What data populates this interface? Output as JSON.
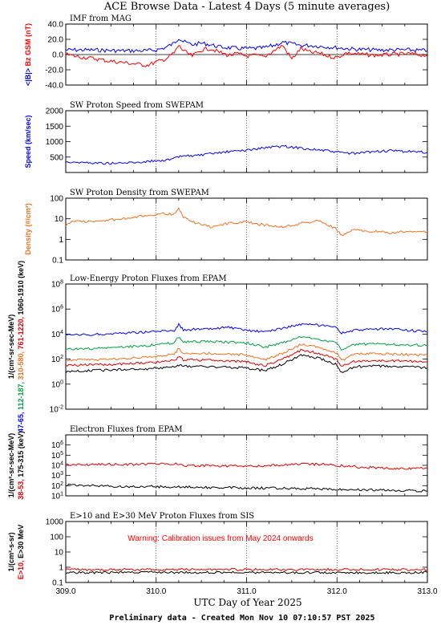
{
  "page": {
    "title": "ACE Browse Data - Latest 4 Days (5 minute averages)",
    "xlabel": "UTC Day of Year 2025",
    "footer": "Preliminary data - Created Mon Nov 10 07:10:57 PST 2025",
    "x_ticks": [
      "309.0",
      "310.0",
      "311.0",
      "312.0",
      "313.0"
    ]
  },
  "chart_data": [
    {
      "type": "line",
      "title": "IMF from MAG",
      "xlim": [
        309.0,
        313.0
      ],
      "ylim": [
        -40,
        40
      ],
      "y_ticks": [
        "40.0",
        "20.0",
        "0.0",
        "-20.0",
        "-40.0"
      ],
      "ylabel_parts": [
        {
          "text": "<|B|>",
          "color": "#0000ff"
        },
        {
          "text": "Bz GSM (nT)",
          "color": "#ff0000"
        }
      ],
      "zero_line": true,
      "series": [
        {
          "color": "#0000ff",
          "x": [
            309.0,
            309.3,
            309.6,
            309.9,
            310.0,
            310.1,
            310.2,
            310.25,
            310.3,
            310.4,
            310.5,
            310.6,
            310.7,
            310.8,
            310.9,
            311.0,
            311.1,
            311.2,
            311.3,
            311.4,
            311.5,
            311.6,
            311.7,
            311.8,
            311.9,
            312.0,
            312.2,
            312.4,
            312.6,
            312.8,
            313.0
          ],
          "values": [
            6,
            6,
            5,
            5,
            6,
            9,
            15,
            22,
            17,
            13,
            15,
            13,
            10,
            9,
            8,
            8,
            8,
            9,
            12,
            16,
            14,
            12,
            12,
            11,
            10,
            9,
            7,
            6,
            6,
            6,
            5
          ]
        },
        {
          "color": "#ff0000",
          "x": [
            309.0,
            309.15,
            309.3,
            309.45,
            309.6,
            309.75,
            309.9,
            310.0,
            310.1,
            310.2,
            310.25,
            310.3,
            310.4,
            310.5,
            310.6,
            310.7,
            310.8,
            310.9,
            311.0,
            311.1,
            311.2,
            311.3,
            311.4,
            311.5,
            311.6,
            311.7,
            311.8,
            311.9,
            312.0,
            312.1,
            312.2,
            312.4,
            312.6,
            312.8,
            313.0
          ],
          "values": [
            0,
            -3,
            -5,
            -8,
            -10,
            -12,
            -14,
            -10,
            -6,
            2,
            12,
            5,
            -2,
            6,
            8,
            3,
            -1,
            1,
            -2,
            -1,
            -3,
            5,
            12,
            -6,
            8,
            3,
            2,
            -2,
            -4,
            2,
            1,
            -1,
            0,
            1,
            -1
          ]
        }
      ]
    },
    {
      "type": "line",
      "title": "SW Proton Speed from SWEPAM",
      "xlim": [
        309.0,
        313.0
      ],
      "ylim": [
        0,
        2000
      ],
      "y_ticks": [
        "2000",
        "1500",
        "1000",
        "500"
      ],
      "ylabel_parts": [
        {
          "text": "Speed (km/sec)",
          "color": "#0000ff"
        }
      ],
      "series": [
        {
          "color": "#0000ff",
          "x": [
            309.0,
            309.2,
            309.4,
            309.6,
            309.8,
            310.0,
            310.15,
            310.3,
            310.5,
            310.7,
            310.9,
            311.0,
            311.2,
            311.4,
            311.6,
            311.8,
            312.0,
            312.2,
            312.4,
            312.6,
            312.8,
            313.0
          ],
          "values": [
            350,
            320,
            300,
            300,
            330,
            380,
            410,
            540,
            560,
            640,
            700,
            720,
            800,
            850,
            790,
            730,
            660,
            610,
            680,
            700,
            680,
            650
          ]
        }
      ]
    },
    {
      "type": "line",
      "title": "SW Proton Density from SWEPAM",
      "xlim": [
        309.0,
        313.0
      ],
      "ylim": [
        0.1,
        100
      ],
      "log": true,
      "y_ticks": [
        "100",
        "10",
        "1",
        "0.1"
      ],
      "ylabel_parts": [
        {
          "text": "Density (#/cm³)",
          "color": "#f07020"
        }
      ],
      "series": [
        {
          "color": "#f07020",
          "x": [
            309.0,
            309.1,
            309.3,
            309.5,
            309.7,
            309.9,
            310.1,
            310.2,
            310.25,
            310.3,
            310.45,
            310.6,
            310.8,
            311.0,
            311.2,
            311.4,
            311.6,
            311.8,
            311.9,
            312.0,
            312.05,
            312.2,
            312.4,
            312.6,
            312.8,
            313.0
          ],
          "values": [
            5,
            8,
            7,
            9,
            10,
            15,
            18,
            16,
            30,
            12,
            6,
            4,
            6,
            7,
            5,
            4,
            6,
            8,
            5,
            3,
            1.5,
            3,
            2.5,
            2,
            2.5,
            2.4
          ]
        }
      ]
    },
    {
      "type": "line",
      "title": "Low-Energy Proton Fluxes from EPAM",
      "xlim": [
        309.0,
        313.0
      ],
      "ylim": [
        0.01,
        100000000
      ],
      "log": true,
      "y_ticks": [
        "10^8",
        "10^6",
        "10^4",
        "10^2",
        "10^0",
        "10^-2"
      ],
      "ylabel_parts": [
        {
          "text": "47-65,",
          "color": "#0000ff"
        },
        {
          "text": "112-187,",
          "color": "#00a040"
        },
        {
          "text": "310-580,",
          "color": "#f07020"
        },
        {
          "text": "761-1220,",
          "color": "#e00000"
        },
        {
          "text": "1060-1910 (keV)",
          "color": "#000000"
        },
        {
          "text": "1/(cm²-sr-sec-MeV)",
          "color": "#000000"
        }
      ],
      "series": [
        {
          "name": "47-65",
          "color": "#0000ff",
          "x": [
            309.0,
            309.3,
            309.6,
            309.9,
            310.2,
            310.25,
            310.3,
            310.6,
            310.8,
            310.9,
            311.0,
            311.2,
            311.4,
            311.6,
            311.8,
            312.0,
            312.05,
            312.2,
            312.4,
            312.6,
            312.8,
            313.0
          ],
          "values": [
            8000,
            9000,
            12000,
            15000,
            20000,
            60000,
            22000,
            25000,
            35000,
            25000,
            20000,
            15000,
            30000,
            60000,
            50000,
            30000,
            12000,
            20000,
            25000,
            25000,
            20000,
            15000
          ]
        },
        {
          "name": "112-187",
          "color": "#00a040",
          "x": [
            309.0,
            309.3,
            309.6,
            309.9,
            310.2,
            310.25,
            310.3,
            310.6,
            310.8,
            311.0,
            311.2,
            311.4,
            311.6,
            311.8,
            312.0,
            312.05,
            312.2,
            312.4,
            312.6,
            312.8,
            313.0
          ],
          "values": [
            600,
            700,
            900,
            1200,
            2000,
            6000,
            2500,
            2500,
            2200,
            2000,
            900,
            2000,
            6000,
            4000,
            2000,
            500,
            1500,
            1600,
            1500,
            1400,
            1300
          ]
        },
        {
          "name": "310-580",
          "color": "#f07020",
          "x": [
            309.0,
            309.3,
            309.6,
            309.9,
            310.2,
            310.25,
            310.3,
            310.6,
            310.8,
            311.0,
            311.2,
            311.4,
            311.6,
            311.8,
            312.0,
            312.05,
            312.2,
            312.4,
            312.6,
            312.8,
            313.0
          ],
          "values": [
            80,
            90,
            110,
            140,
            250,
            700,
            300,
            280,
            250,
            220,
            90,
            300,
            1500,
            900,
            300,
            80,
            250,
            280,
            260,
            230,
            200
          ]
        },
        {
          "name": "761-1220",
          "color": "#e00000",
          "x": [
            309.0,
            309.3,
            309.6,
            309.9,
            310.2,
            310.25,
            310.3,
            310.6,
            310.8,
            311.0,
            311.2,
            311.4,
            311.6,
            311.8,
            312.0,
            312.05,
            312.2,
            312.4,
            312.6,
            312.8,
            313.0
          ],
          "values": [
            30,
            35,
            40,
            50,
            80,
            150,
            90,
            80,
            70,
            60,
            30,
            100,
            500,
            300,
            90,
            25,
            70,
            80,
            75,
            70,
            60
          ]
        },
        {
          "name": "1060-1910",
          "color": "#000000",
          "x": [
            309.0,
            309.3,
            309.6,
            309.9,
            310.2,
            310.25,
            310.3,
            310.6,
            310.8,
            311.0,
            311.2,
            311.4,
            311.6,
            311.8,
            312.0,
            312.05,
            312.2,
            312.4,
            312.6,
            312.8,
            313.0
          ],
          "values": [
            10,
            12,
            14,
            16,
            25,
            35,
            28,
            25,
            22,
            20,
            12,
            40,
            200,
            120,
            35,
            8,
            25,
            28,
            26,
            24,
            20
          ]
        }
      ]
    },
    {
      "type": "line",
      "title": "Electron Fluxes from EPAM",
      "xlim": [
        309.0,
        313.0
      ],
      "ylim": [
        10,
        10000000
      ],
      "log": true,
      "y_ticks": [
        "10^6",
        "10^5",
        "10^4",
        "10^3",
        "10^2",
        "10^1"
      ],
      "ylabel_parts": [
        {
          "text": "38-53,",
          "color": "#e00000"
        },
        {
          "text": "175-315 (keV)",
          "color": "#000000"
        },
        {
          "text": "1/(cm²-sr-sec-MeV)",
          "color": "#000000"
        }
      ],
      "series": [
        {
          "name": "38-53",
          "color": "#e00000",
          "x": [
            309.0,
            309.5,
            310.0,
            310.2,
            310.3,
            310.6,
            311.0,
            311.3,
            311.6,
            311.9,
            312.2,
            312.6,
            313.0
          ],
          "values": [
            12000,
            12000,
            13000,
            15000,
            10000,
            9000,
            8000,
            10000,
            14000,
            12000,
            7000,
            5000,
            5000
          ]
        },
        {
          "name": "175-315",
          "color": "#000000",
          "x": [
            309.0,
            309.5,
            310.0,
            310.5,
            311.0,
            311.5,
            312.0,
            312.5,
            313.0
          ],
          "values": [
            120,
            90,
            80,
            70,
            60,
            55,
            45,
            35,
            30
          ]
        }
      ]
    },
    {
      "type": "line",
      "title": "E>10 and E>30 MeV Proton Fluxes from SIS",
      "xlim": [
        309.0,
        313.0
      ],
      "ylim": [
        0.1,
        1000
      ],
      "log": true,
      "y_ticks": [
        "1000",
        "100",
        "10",
        "1",
        "0.1"
      ],
      "annotation": "Warning: Calibration issues from May 2024 onwards",
      "ylabel_parts": [
        {
          "text": "E>10,",
          "color": "#e00000"
        },
        {
          "text": "E>30 MeV",
          "color": "#000000"
        },
        {
          "text": "1/(cm²-s-sr)",
          "color": "#000000"
        }
      ],
      "series": [
        {
          "name": "E>10",
          "color": "#e00000",
          "x": [
            309.0,
            313.0
          ],
          "values": [
            0.7,
            0.7
          ]
        },
        {
          "name": "E>30",
          "color": "#000000",
          "x": [
            309.0,
            313.0
          ],
          "values": [
            0.45,
            0.45
          ]
        }
      ]
    }
  ]
}
